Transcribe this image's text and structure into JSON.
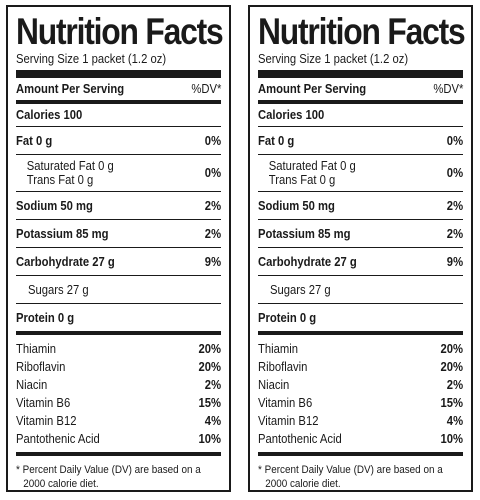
{
  "label": {
    "title": "Nutrition Facts",
    "serving_size": "Serving Size 1 packet (1.2 oz)",
    "amount_per_serving": "Amount Per Serving",
    "dv_header": "%DV*",
    "calories": "Calories 100",
    "fat": {
      "label": "Fat 0 g",
      "dv": "0%"
    },
    "saturated_fat": "Saturated Fat 0 g",
    "trans_fat": "Trans Fat 0 g",
    "sat_trans_dv": "0%",
    "sodium": {
      "label": "Sodium 50 mg",
      "dv": "2%"
    },
    "potassium": {
      "label": "Potassium 85 mg",
      "dv": "2%"
    },
    "carbohydrate": {
      "label": "Carbohydrate 27 g",
      "dv": "9%"
    },
    "sugars": "Sugars 27 g",
    "protein": "Protein 0 g",
    "vitamins": [
      {
        "label": "Thiamin",
        "dv": "20%"
      },
      {
        "label": "Riboflavin",
        "dv": "20%"
      },
      {
        "label": "Niacin",
        "dv": "2%"
      },
      {
        "label": "Vitamin B6",
        "dv": "15%"
      },
      {
        "label": "Vitamin B12",
        "dv": "4%"
      },
      {
        "label": "Pantothenic Acid",
        "dv": "10%"
      }
    ],
    "footnote_line1": "* Percent Daily Value (DV) are based on a",
    "footnote_line2": "2000 calorie diet."
  }
}
